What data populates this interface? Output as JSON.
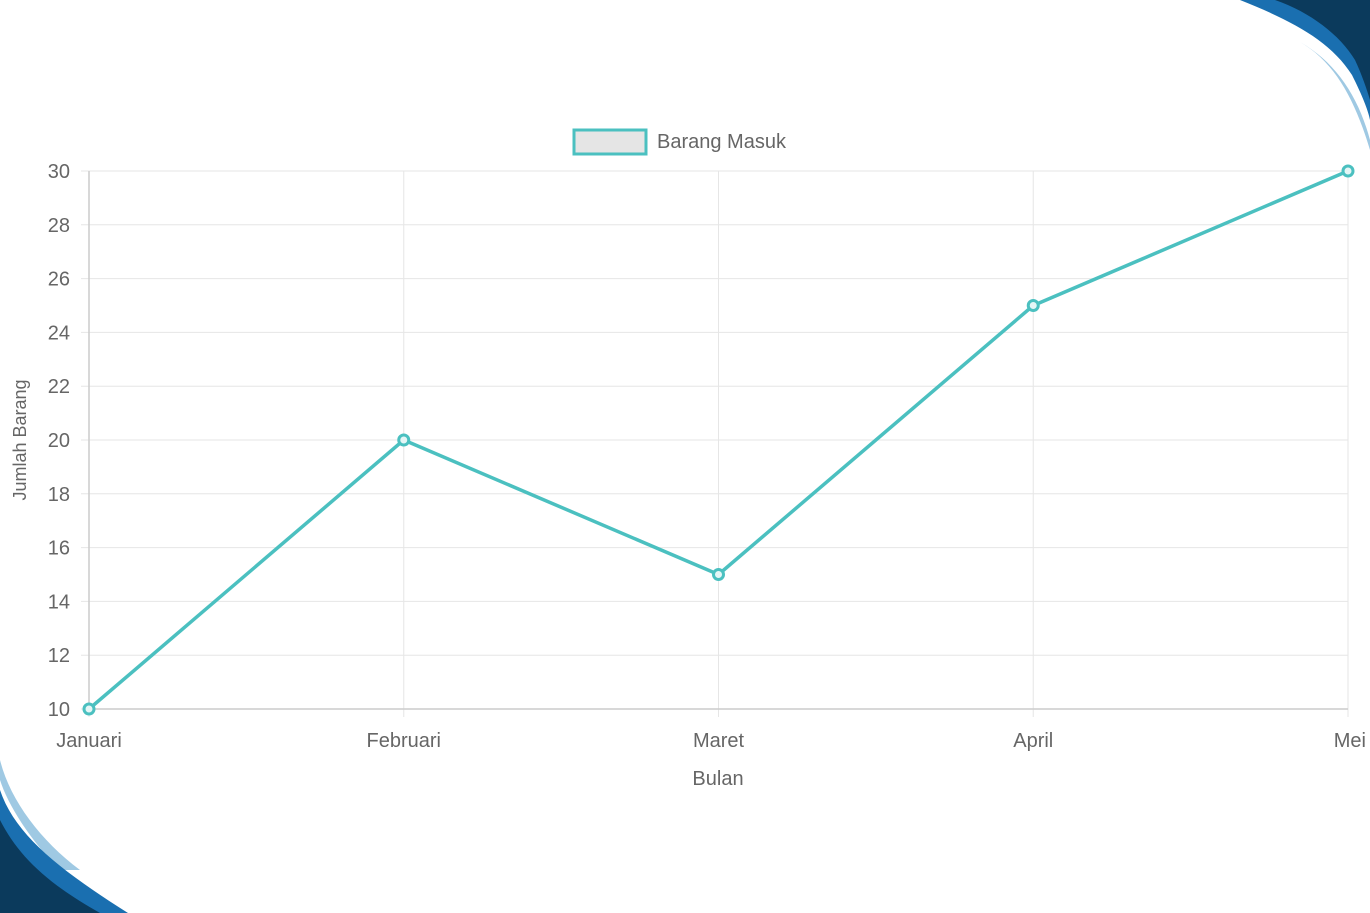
{
  "chart_data": {
    "type": "line",
    "categories": [
      "Januari",
      "Februari",
      "Maret",
      "April",
      "Mei"
    ],
    "series": [
      {
        "name": "Barang Masuk",
        "values": [
          10,
          20,
          15,
          25,
          30
        ]
      }
    ],
    "xlabel": "Bulan",
    "ylabel": "Jumlah Barang",
    "ylim": [
      10,
      30
    ],
    "yticks": [
      10,
      12,
      14,
      16,
      18,
      20,
      22,
      24,
      26,
      28,
      30
    ],
    "grid": true,
    "legend_position": "top-center"
  },
  "colors": {
    "line": "#4bc0c0",
    "legend_fill": "#e5e5e5",
    "grid": "#e6e6e6",
    "text": "#666666",
    "decor_dark": "#0b3a5c",
    "decor_mid": "#1a6fb0",
    "decor_light": "#9fc9e3"
  }
}
